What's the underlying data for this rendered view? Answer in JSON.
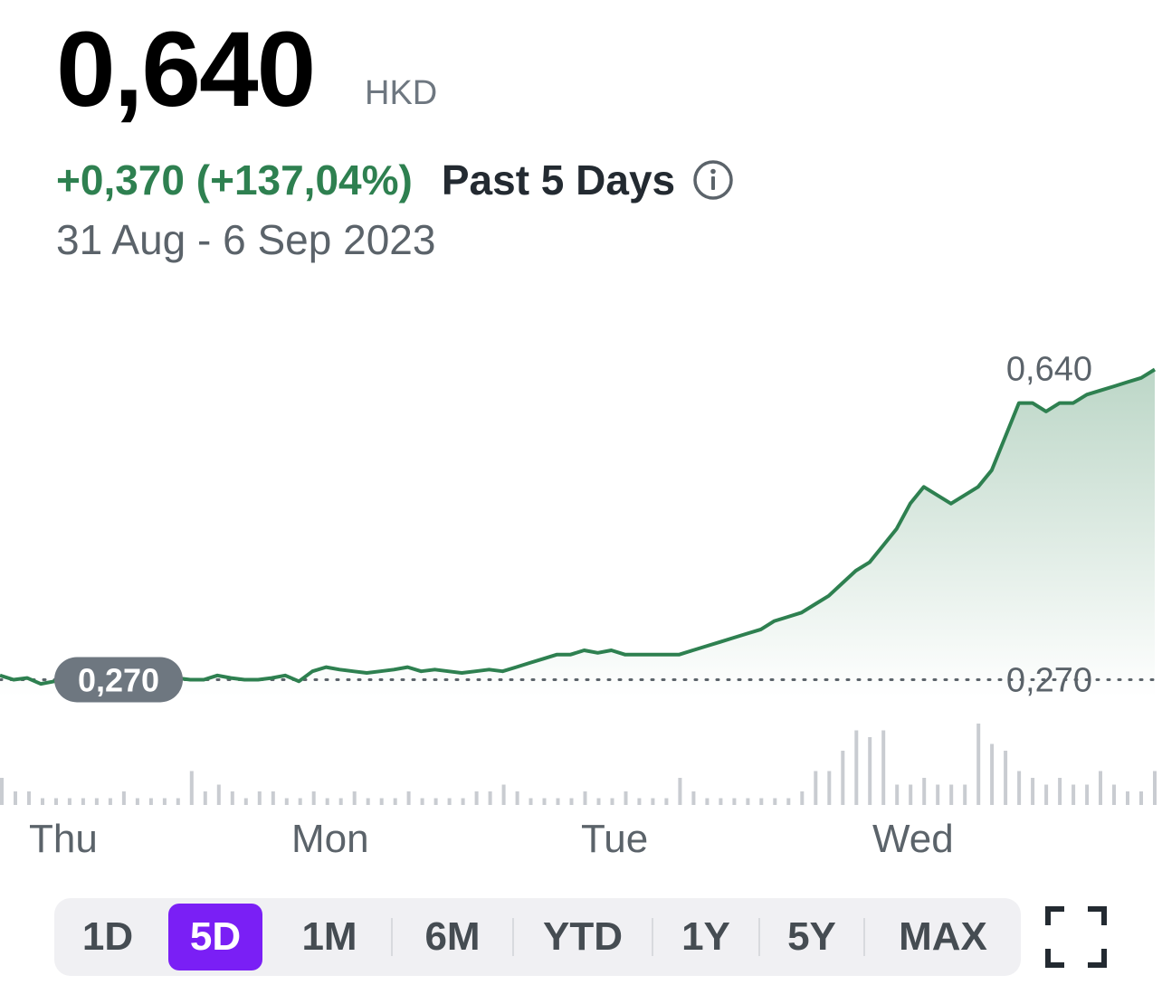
{
  "quote": {
    "price": "0,640",
    "currency": "HKD",
    "change": "+0,370 (+137,04%)",
    "period": "Past 5 Days",
    "date_range": "31 Aug - 6 Sep 2023"
  },
  "colors": {
    "up": "#2e8050",
    "accent": "#7a1ff5",
    "volume": "#c9ccd1",
    "prev_close_badge": "#6e7780"
  },
  "icons": {
    "info": "info-icon",
    "fullscreen": "fullscreen-icon"
  },
  "range_selector": {
    "options": [
      "1D",
      "5D",
      "1M",
      "6M",
      "YTD",
      "1Y",
      "5Y",
      "MAX"
    ],
    "selected": "5D"
  },
  "chart_data": {
    "type": "area",
    "x_labels": [
      "Thu",
      "Mon",
      "Tue",
      "Wed"
    ],
    "y_labels": {
      "high": "0,640",
      "previous_close": "0,270"
    },
    "previous_close": 0.27,
    "ylim": [
      0.25,
      0.66
    ],
    "series": [
      {
        "values": [
          0.275,
          0.27,
          0.272,
          0.265,
          0.268,
          0.27,
          0.275,
          0.272,
          0.27,
          0.27,
          0.272,
          0.275,
          0.27,
          0.272,
          0.27,
          0.27,
          0.275,
          0.272,
          0.27,
          0.27,
          0.272,
          0.275,
          0.268,
          0.28,
          0.285,
          0.282,
          0.28,
          0.278,
          0.28,
          0.282,
          0.285,
          0.28,
          0.282,
          0.28,
          0.278,
          0.28,
          0.282,
          0.28,
          0.285,
          0.29,
          0.295,
          0.3,
          0.3,
          0.305,
          0.302,
          0.305,
          0.3,
          0.3,
          0.3,
          0.3,
          0.3,
          0.305,
          0.31,
          0.315,
          0.32,
          0.325,
          0.33,
          0.34,
          0.345,
          0.35,
          0.36,
          0.37,
          0.385,
          0.4,
          0.41,
          0.43,
          0.45,
          0.48,
          0.5,
          0.49,
          0.48,
          0.49,
          0.5,
          0.52,
          0.56,
          0.6,
          0.6,
          0.59,
          0.6,
          0.6,
          0.61,
          0.615,
          0.62,
          0.625,
          0.63,
          0.64
        ]
      }
    ],
    "volume": [
      4,
      2,
      2,
      1,
      1,
      1,
      1,
      1,
      1,
      2,
      1,
      1,
      1,
      1,
      5,
      2,
      3,
      2,
      1,
      2,
      2,
      1,
      1,
      2,
      1,
      1,
      2,
      1,
      1,
      1,
      2,
      1,
      1,
      1,
      1,
      2,
      2,
      3,
      2,
      1,
      1,
      1,
      1,
      2,
      1,
      1,
      2,
      1,
      1,
      1,
      4,
      2,
      1,
      1,
      1,
      1,
      1,
      1,
      1,
      2,
      5,
      5,
      8,
      11,
      10,
      11,
      3,
      3,
      4,
      3,
      3,
      3,
      12,
      9,
      8,
      5,
      4,
      3,
      4,
      3,
      3,
      5,
      3,
      2,
      2,
      5
    ]
  }
}
